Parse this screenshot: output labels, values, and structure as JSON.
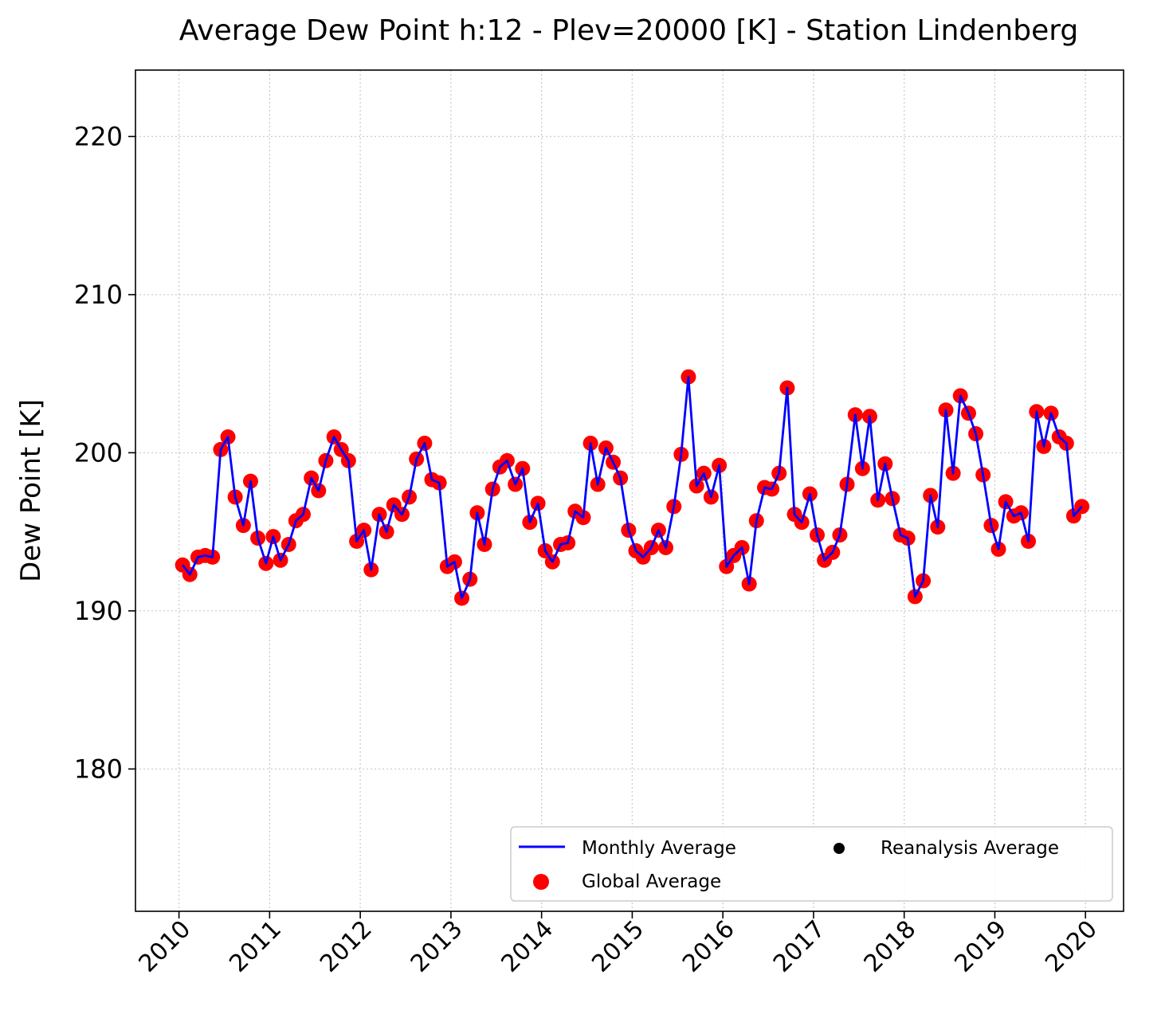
{
  "chart_data": {
    "type": "line",
    "title": "Average Dew Point h:12 - Plev=20000 [K] - Station Lindenberg",
    "xlabel": "",
    "ylabel": "Dew Point [K]",
    "xlim": [
      2009.52,
      2020.42
    ],
    "ylim": [
      171,
      224.2
    ],
    "x_ticks": [
      2010,
      2011,
      2012,
      2013,
      2014,
      2015,
      2016,
      2017,
      2018,
      2019,
      2020
    ],
    "x_tick_labels": [
      "2010",
      "2011",
      "2012",
      "2013",
      "2014",
      "2015",
      "2016",
      "2017",
      "2018",
      "2019",
      "2020"
    ],
    "y_ticks": [
      180,
      190,
      200,
      210,
      220
    ],
    "y_tick_labels": [
      "180",
      "190",
      "200",
      "210",
      "220"
    ],
    "grid": true,
    "legend_position": "lower-right",
    "colors": {
      "monthly": "#0000ff",
      "global": "#ff0000",
      "reanalysis": "#000000"
    },
    "legend": [
      {
        "label": "Monthly Average",
        "marker": "line",
        "color": "#0000ff"
      },
      {
        "label": "Reanalysis Average",
        "marker": "dot",
        "color": "#000000"
      },
      {
        "label": "Global Average",
        "marker": "dot",
        "color": "#ff0000"
      }
    ],
    "series": [
      {
        "name": "Monthly Average",
        "style": "line",
        "color": "#0000ff",
        "x": [
          2010.04,
          2010.12,
          2010.21,
          2010.29,
          2010.37,
          2010.46,
          2010.54,
          2010.62,
          2010.71,
          2010.79,
          2010.87,
          2010.96,
          2011.04,
          2011.12,
          2011.21,
          2011.29,
          2011.37,
          2011.46,
          2011.54,
          2011.62,
          2011.71,
          2011.79,
          2011.87,
          2011.96,
          2012.04,
          2012.12,
          2012.21,
          2012.29,
          2012.37,
          2012.46,
          2012.54,
          2012.62,
          2012.71,
          2012.79,
          2012.87,
          2012.96,
          2013.04,
          2013.12,
          2013.21,
          2013.29,
          2013.37,
          2013.46,
          2013.54,
          2013.62,
          2013.71,
          2013.79,
          2013.87,
          2013.96,
          2014.04,
          2014.12,
          2014.21,
          2014.29,
          2014.37,
          2014.46,
          2014.54,
          2014.62,
          2014.71,
          2014.79,
          2014.87,
          2014.96,
          2015.04,
          2015.12,
          2015.21,
          2015.29,
          2015.37,
          2015.46,
          2015.54,
          2015.62,
          2015.71,
          2015.79,
          2015.87,
          2015.96,
          2016.04,
          2016.12,
          2016.21,
          2016.29,
          2016.37,
          2016.46,
          2016.54,
          2016.62,
          2016.71,
          2016.79,
          2016.87,
          2016.96,
          2017.04,
          2017.12,
          2017.21,
          2017.29,
          2017.37,
          2017.46,
          2017.54,
          2017.62,
          2017.71,
          2017.79,
          2017.87,
          2017.96,
          2018.04,
          2018.12,
          2018.21,
          2018.29,
          2018.37,
          2018.46,
          2018.54,
          2018.62,
          2018.71,
          2018.79,
          2018.87,
          2018.96,
          2019.04,
          2019.12,
          2019.21,
          2019.29,
          2019.37,
          2019.46,
          2019.54,
          2019.62,
          2019.71,
          2019.79,
          2019.87,
          2019.96
        ],
        "y": [
          192.9,
          192.3,
          193.4,
          193.5,
          193.4,
          200.2,
          201.0,
          197.2,
          195.4,
          198.2,
          194.6,
          193.0,
          194.7,
          193.2,
          194.2,
          195.7,
          196.1,
          198.4,
          197.6,
          199.5,
          201.0,
          200.2,
          199.5,
          194.4,
          195.1,
          192.6,
          196.1,
          195.0,
          196.7,
          196.1,
          197.2,
          199.6,
          200.6,
          198.3,
          198.1,
          192.8,
          193.1,
          190.8,
          192.0,
          196.2,
          194.2,
          197.7,
          199.1,
          199.5,
          198.0,
          199.0,
          195.6,
          196.8,
          193.8,
          193.1,
          194.2,
          194.3,
          196.3,
          195.9,
          200.6,
          198.0,
          200.3,
          199.4,
          198.4,
          195.1,
          193.8,
          193.4,
          194.0,
          195.1,
          194.0,
          196.6,
          199.9,
          204.8,
          197.9,
          198.7,
          197.2,
          199.2,
          192.8,
          193.5,
          194.0,
          191.7,
          195.7,
          197.8,
          197.7,
          198.7,
          204.1,
          196.1,
          195.6,
          197.4,
          194.8,
          193.2,
          193.7,
          194.8,
          198.0,
          202.4,
          199.0,
          202.3,
          197.0,
          199.3,
          197.1,
          194.8,
          194.6,
          190.9,
          191.9,
          197.3,
          195.3,
          202.7,
          198.7,
          203.6,
          202.5,
          201.2,
          198.6,
          195.4,
          193.9,
          196.9,
          196.0,
          196.2,
          194.4,
          202.6,
          200.4,
          202.5,
          201.0,
          200.6,
          196.0,
          196.6
        ]
      },
      {
        "name": "Global Average",
        "style": "scatter",
        "color": "#ff0000",
        "x": "same as Monthly Average",
        "y": "same as Monthly Average"
      }
    ]
  }
}
